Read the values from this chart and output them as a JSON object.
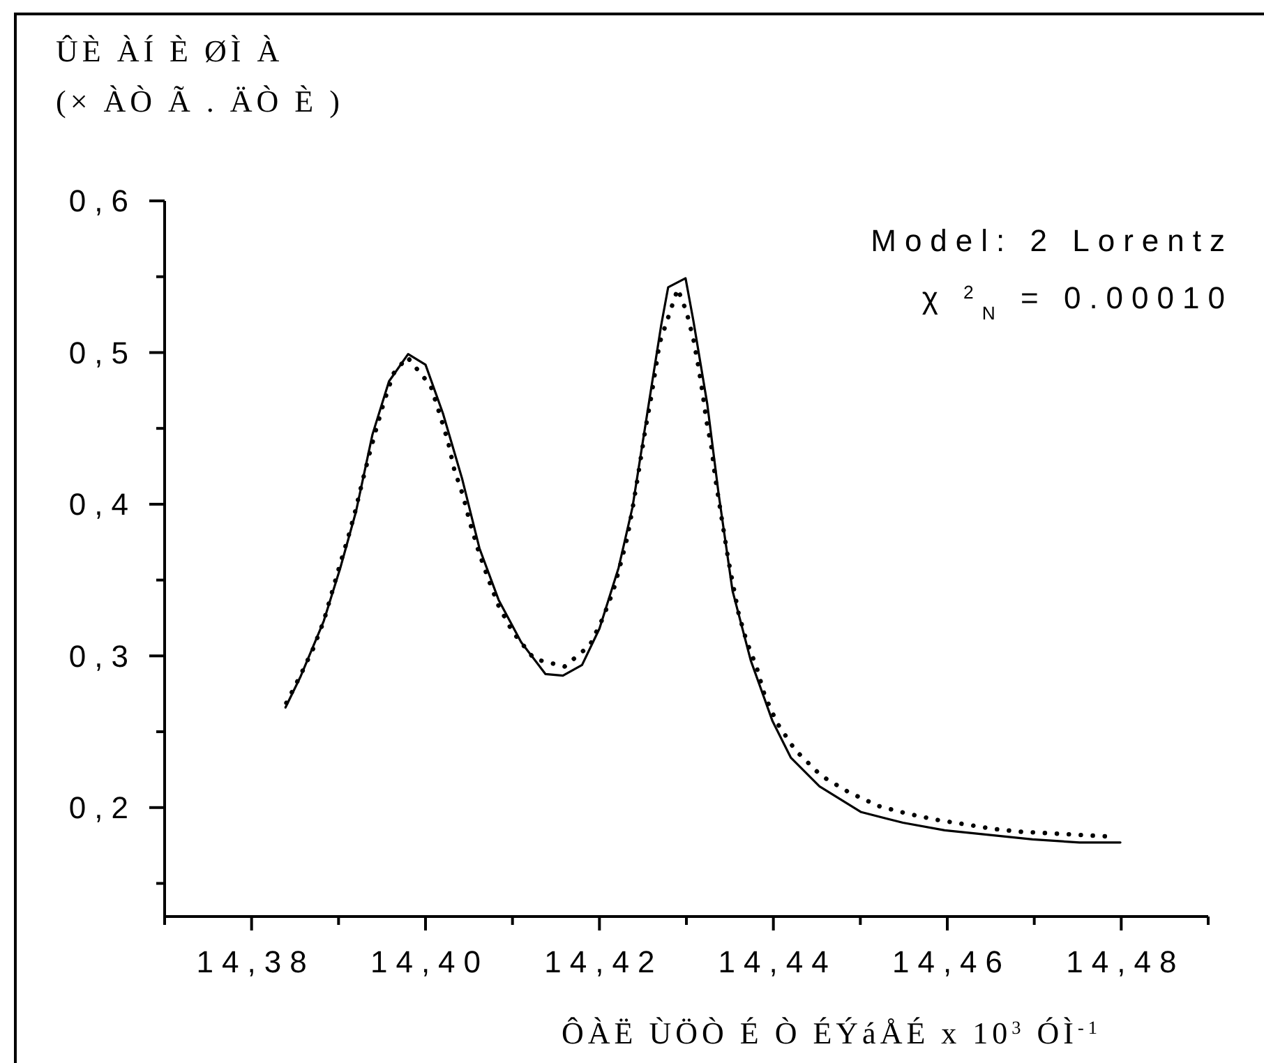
{
  "chart_data": {
    "type": "line",
    "ylabel": "ÛÈ ÀÍ È ØÌ À\n(× ÀÒ Ã . ÄÒ È )",
    "xlabel": "ÔÀË ÙÖÒ É Ò ÉÝáÅÉ x 10$^{3}$ ÓÌ$^{-1}$",
    "annotations": [
      "Model: 2 Lorentz",
      "χ $^{2}$$_{N}$ = 0.00010"
    ],
    "xlim": [
      14.37,
      14.49
    ],
    "ylim": [
      0.13,
      0.6
    ],
    "xticks": [
      {
        "value": 14.37,
        "label": null
      },
      {
        "value": 14.38,
        "label": "14,38"
      },
      {
        "value": 14.39,
        "label": null
      },
      {
        "value": 14.4,
        "label": "14,40"
      },
      {
        "value": 14.41,
        "label": null
      },
      {
        "value": 14.42,
        "label": "14,42"
      },
      {
        "value": 14.43,
        "label": null
      },
      {
        "value": 14.44,
        "label": "14,44"
      },
      {
        "value": 14.45,
        "label": null
      },
      {
        "value": 14.46,
        "label": "14,46"
      },
      {
        "value": 14.47,
        "label": null
      },
      {
        "value": 14.48,
        "label": "14,48"
      },
      {
        "value": 14.49,
        "label": null
      }
    ],
    "yticks": [
      {
        "value": 0.15,
        "label": null
      },
      {
        "value": 0.2,
        "label": "0,2"
      },
      {
        "value": 0.25,
        "label": null
      },
      {
        "value": 0.3,
        "label": "0,3"
      },
      {
        "value": 0.35,
        "label": null
      },
      {
        "value": 0.4,
        "label": "0,4"
      },
      {
        "value": 0.45,
        "label": null
      },
      {
        "value": 0.5,
        "label": "0,5"
      },
      {
        "value": 0.55,
        "label": null
      },
      {
        "value": 0.6,
        "label": "0,6"
      }
    ],
    "grid": false,
    "marker": "none",
    "series": [
      {
        "color": "#000000",
        "line_style": "solid",
        "x": [
          14.3839,
          14.3856,
          14.3883,
          14.3902,
          14.392,
          14.3939,
          14.3958,
          14.398,
          14.4,
          14.402,
          14.4042,
          14.4062,
          14.4084,
          14.411,
          14.4138,
          14.4158,
          14.418,
          14.42,
          14.4222,
          14.4238,
          14.4255,
          14.4271,
          14.4279,
          14.4299,
          14.4308,
          14.4324,
          14.4337,
          14.4353,
          14.4374,
          14.4399,
          14.442,
          14.4453,
          14.4501,
          14.4549,
          14.4597,
          14.4698,
          14.4752,
          14.4799
        ],
        "values": [
          0.266,
          0.286,
          0.323,
          0.358,
          0.395,
          0.446,
          0.481,
          0.499,
          0.492,
          0.46,
          0.417,
          0.371,
          0.337,
          0.309,
          0.288,
          0.287,
          0.294,
          0.318,
          0.358,
          0.398,
          0.46,
          0.518,
          0.543,
          0.549,
          0.521,
          0.466,
          0.407,
          0.343,
          0.297,
          0.257,
          0.233,
          0.214,
          0.197,
          0.19,
          0.185,
          0.179,
          0.177,
          0.177
        ]
      },
      {
        "color": "#000000",
        "line_style": "dotted",
        "x": [
          14.384,
          14.3856,
          14.3871,
          14.3883,
          14.3892,
          14.3902,
          14.3911,
          14.3919,
          14.3927,
          14.3935,
          14.3943,
          14.3952,
          14.3963,
          14.3979,
          14.4006,
          14.4016,
          14.4026,
          14.4033,
          14.4043,
          14.4051,
          14.4061,
          14.4072,
          14.4084,
          14.41,
          14.4125,
          14.416,
          14.4189,
          14.4204,
          14.4216,
          14.4224,
          14.4232,
          14.4238,
          14.4243,
          14.4248,
          14.4253,
          14.4259,
          14.4264,
          14.4269,
          14.429,
          14.43,
          14.4308,
          14.4314,
          14.4319,
          14.4323,
          14.4329,
          14.4333,
          14.4338,
          14.4343,
          14.4348,
          14.4354,
          14.436,
          14.4369,
          14.4381,
          14.439,
          14.4404,
          14.4425,
          14.4455,
          14.4487,
          14.4521,
          14.4554,
          14.4587,
          14.462,
          14.4652,
          14.4686,
          14.4719,
          14.4751,
          14.4783
        ],
        "values": [
          0.269,
          0.287,
          0.305,
          0.323,
          0.341,
          0.361,
          0.378,
          0.395,
          0.414,
          0.432,
          0.449,
          0.467,
          0.486,
          0.497,
          0.478,
          0.46,
          0.441,
          0.423,
          0.406,
          0.388,
          0.369,
          0.351,
          0.333,
          0.316,
          0.298,
          0.293,
          0.307,
          0.325,
          0.343,
          0.36,
          0.378,
          0.397,
          0.414,
          0.432,
          0.45,
          0.469,
          0.487,
          0.506,
          0.542,
          0.527,
          0.509,
          0.49,
          0.472,
          0.455,
          0.437,
          0.418,
          0.4,
          0.382,
          0.364,
          0.346,
          0.328,
          0.31,
          0.292,
          0.274,
          0.256,
          0.238,
          0.221,
          0.21,
          0.201,
          0.196,
          0.192,
          0.189,
          0.186,
          0.184,
          0.183,
          0.182,
          0.181
        ]
      }
    ]
  }
}
